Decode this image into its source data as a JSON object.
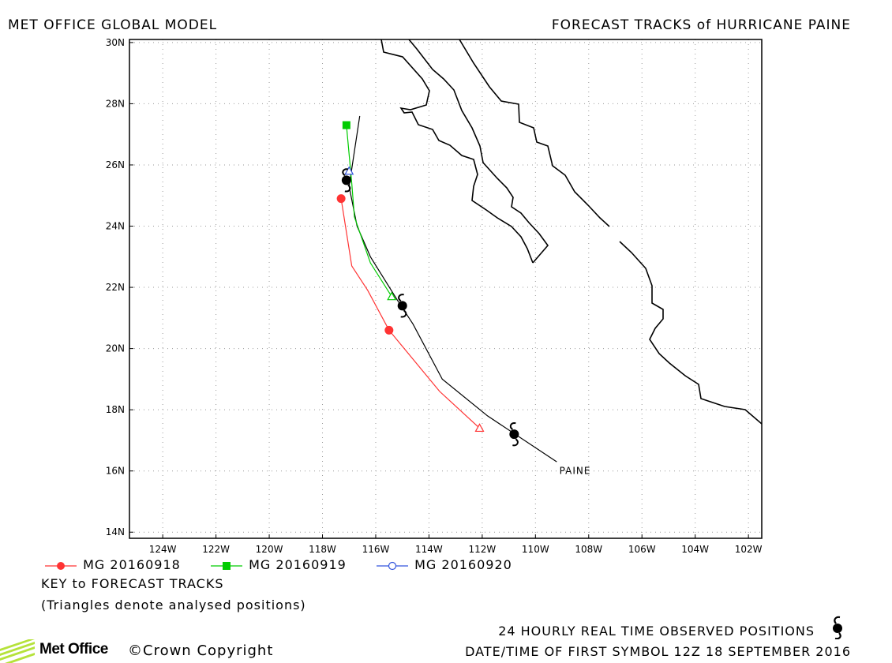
{
  "header": {
    "left_title": "MET OFFICE GLOBAL MODEL",
    "right_title": "FORECAST TRACKS of HURRICANE PAINE"
  },
  "map": {
    "lon_range": [
      -125.25,
      -101.5
    ],
    "lat_range": [
      13.8,
      30.1
    ],
    "lon_ticks": [
      -124,
      -122,
      -120,
      -118,
      -116,
      -114,
      -112,
      -110,
      -108,
      -106,
      -104,
      -102
    ],
    "lon_tick_labels": [
      "124W",
      "122W",
      "120W",
      "118W",
      "116W",
      "114W",
      "112W",
      "110W",
      "108W",
      "106W",
      "104W",
      "102W"
    ],
    "lat_ticks": [
      14,
      16,
      18,
      20,
      22,
      24,
      26,
      28,
      30
    ],
    "lat_tick_labels": [
      "14N",
      "16N",
      "18N",
      "20N",
      "22N",
      "24N",
      "26N",
      "28N",
      "30N"
    ],
    "grid": "dotted",
    "storm_label": "PAINE",
    "storm_label_position": [
      -109.1,
      15.9
    ]
  },
  "observed_track": {
    "name": "PAINE",
    "color": "#000000",
    "points": [
      [
        -109.2,
        16.3
      ],
      [
        -111.8,
        17.8
      ],
      [
        -113.5,
        19.0
      ],
      [
        -114.6,
        20.8
      ],
      [
        -115.2,
        21.6
      ],
      [
        -116.2,
        23.0
      ],
      [
        -116.7,
        24.0
      ],
      [
        -117.0,
        25.3
      ],
      [
        -116.6,
        27.6
      ]
    ],
    "symbols": [
      [
        -110.8,
        17.2
      ],
      [
        -115.0,
        21.4
      ],
      [
        -117.1,
        25.5
      ]
    ]
  },
  "forecast_tracks": [
    {
      "name": "MG 20160918",
      "color": "#ff3333",
      "marker": "filled-circle",
      "points": [
        [
          -112.1,
          17.4
        ],
        [
          -113.6,
          18.6
        ],
        [
          -115.5,
          20.6
        ],
        [
          -116.3,
          21.9
        ],
        [
          -116.9,
          22.7
        ],
        [
          -117.3,
          24.9
        ]
      ],
      "analysed": [
        -112.1,
        17.4
      ],
      "markers": [
        [
          -115.5,
          20.6
        ],
        [
          -117.3,
          24.9
        ]
      ]
    },
    {
      "name": "MG 20160919",
      "color": "#00cc00",
      "marker": "filled-square",
      "points": [
        [
          -115.4,
          21.7
        ],
        [
          -116.2,
          22.8
        ],
        [
          -116.8,
          24.3
        ],
        [
          -116.9,
          25.4
        ],
        [
          -117.1,
          27.3
        ]
      ],
      "analysed": [
        -115.4,
        21.7
      ],
      "markers": [
        [
          -117.1,
          27.3
        ]
      ]
    },
    {
      "name": "MG 20160920",
      "color": "#3355dd",
      "marker": "open-circle",
      "points": [
        [
          -117.0,
          25.8
        ],
        [
          -116.95,
          25.75
        ]
      ],
      "analysed": [
        -117.0,
        25.8
      ],
      "markers": []
    }
  ],
  "legend": {
    "items": [
      {
        "label": "MG 20160918",
        "color": "#ff3333",
        "marker": "filled-circle"
      },
      {
        "label": "MG 20160919",
        "color": "#00cc00",
        "marker": "filled-square"
      },
      {
        "label": "MG 20160920",
        "color": "#3355dd",
        "marker": "open-circle"
      }
    ],
    "key_title": "KEY to FORECAST TRACKS",
    "key_note": "(Triangles denote analysed positions)"
  },
  "footer": {
    "observed_text": "24 HOURLY REAL TIME OBSERVED POSITIONS",
    "observed_icon": "hurricane-symbol-icon",
    "date_text": "DATE/TIME OF FIRST SYMBOL 12Z 18 SEPTEMBER 2016",
    "logo_text": "Met Office",
    "copyright_text": "©Crown Copyright"
  }
}
